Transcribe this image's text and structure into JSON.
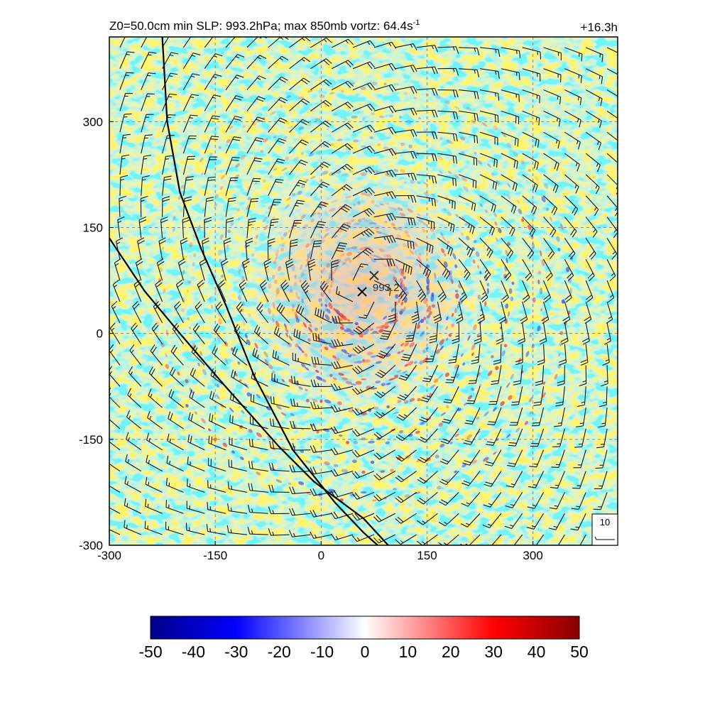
{
  "chart_data": {
    "type": "heatmap",
    "title_prefix": "Z0=50.0cm  min SLP: 993.2hPa; max 850mb vortz:  64.4s",
    "title_superscript": "-1",
    "time_label": "+16.3h",
    "xlim": [
      -300,
      420
    ],
    "ylim": [
      -300,
      420
    ],
    "x_ticks": [
      -300,
      -150,
      0,
      150,
      300
    ],
    "y_ticks": [
      -300,
      -150,
      0,
      150,
      300
    ],
    "grid": "dashed",
    "field": "850mb vorticity",
    "colorbar": {
      "min": -50,
      "max": 50,
      "ticks": [
        -50,
        -40,
        -30,
        -20,
        -10,
        0,
        10,
        20,
        30,
        40,
        50
      ],
      "colors": [
        "#000088",
        "#0000ff",
        "#ffffff",
        "#ff0000",
        "#880000"
      ],
      "placement": "bottom"
    },
    "center_markers": [
      {
        "x": 58,
        "y": 59,
        "label": ""
      },
      {
        "x": 75,
        "y": 82,
        "label": "993.2"
      }
    ],
    "reference_barb_label": "10",
    "wind_barbs": {
      "spacing": 30,
      "center": [
        60,
        60
      ],
      "rmax": 55
    },
    "coastlines": [
      [
        [
          -225,
          420
        ],
        [
          -218,
          300
        ],
        [
          -200,
          200
        ],
        [
          -170,
          120
        ],
        [
          -135,
          40
        ],
        [
          -95,
          -60
        ],
        [
          -40,
          -165
        ],
        [
          20,
          -240
        ],
        [
          60,
          -282
        ],
        [
          80,
          -300
        ]
      ],
      [
        [
          -300,
          135
        ],
        [
          -250,
          60
        ],
        [
          -200,
          0
        ],
        [
          -140,
          -70
        ],
        [
          -60,
          -160
        ],
        [
          -10,
          -210
        ],
        [
          60,
          -262
        ],
        [
          95,
          -300
        ]
      ]
    ]
  }
}
